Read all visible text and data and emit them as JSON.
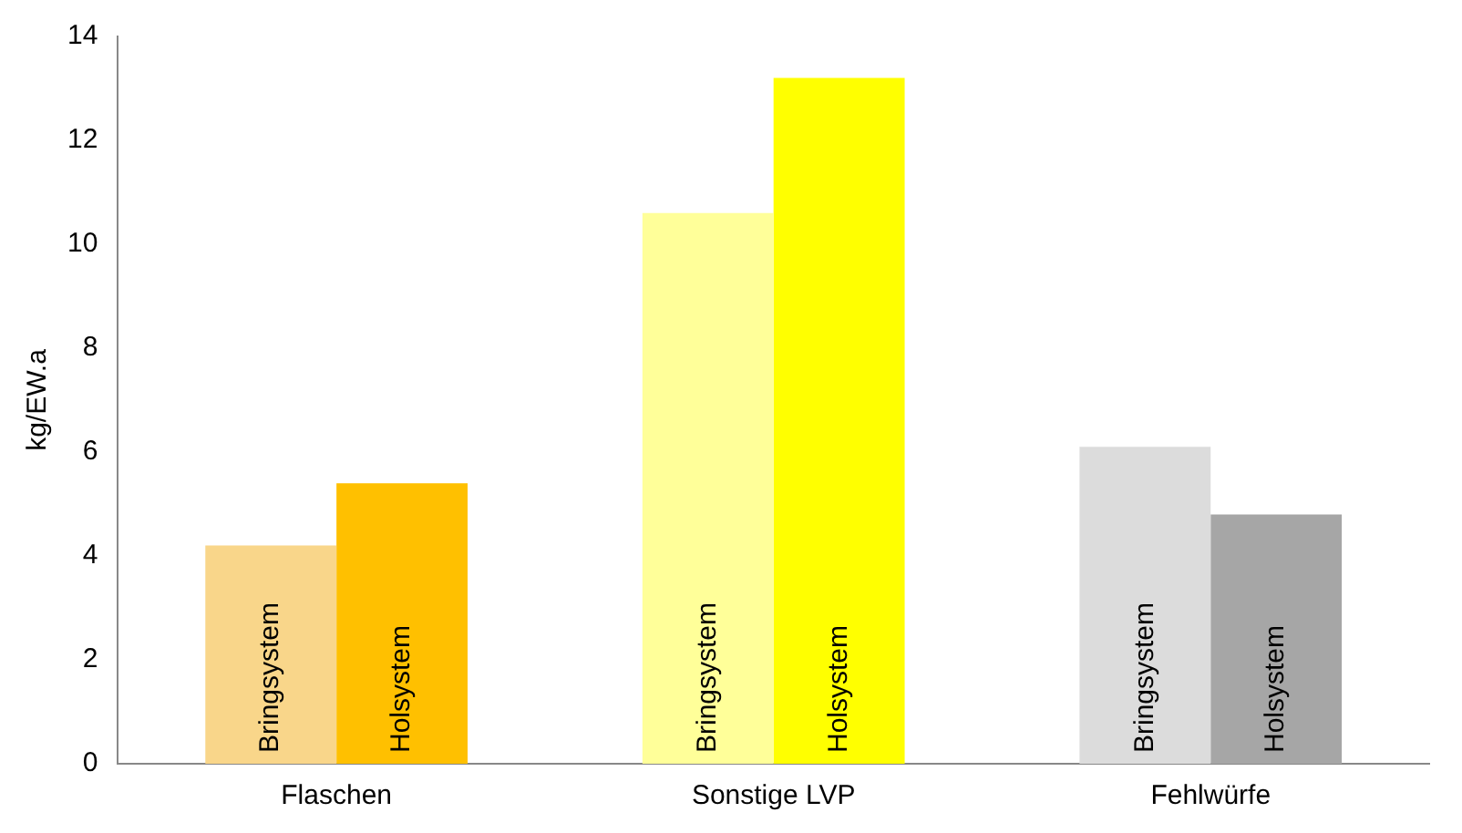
{
  "chart_data": {
    "type": "bar",
    "ylabel": "kg/EW.a",
    "categories": [
      "Flaschen",
      "Sonstige LVP",
      "Fehlwürfe"
    ],
    "series": [
      {
        "name": "Bringsystem",
        "colors": [
          "#f9d68a",
          "#ffff99",
          "#dcdcdc"
        ],
        "values": [
          4.2,
          10.6,
          6.1
        ]
      },
      {
        "name": "Holsystem",
        "colors": [
          "#ffc000",
          "#ffff00",
          "#a6a6a6"
        ],
        "values": [
          5.4,
          13.2,
          4.8
        ]
      }
    ],
    "ylim": [
      0,
      14
    ],
    "yticks": [
      0,
      2,
      4,
      6,
      8,
      10,
      12,
      14
    ],
    "grid": false,
    "legend": false
  }
}
